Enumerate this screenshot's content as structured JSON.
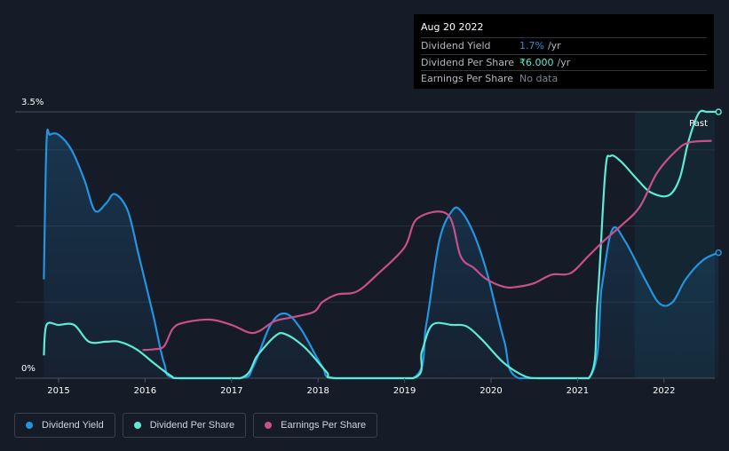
{
  "tooltip": {
    "date": "Aug 20 2022",
    "rows": [
      {
        "label": "Dividend Yield",
        "value": "1.7%",
        "unit": "/yr",
        "color": "#2394df"
      },
      {
        "label": "Dividend Per Share",
        "value": "₹6.000",
        "unit": "/yr",
        "color": "#5eead4"
      },
      {
        "label": "Earnings Per Share",
        "value": "No data",
        "unit": "",
        "color": "#7c8290"
      }
    ]
  },
  "legend": [
    {
      "label": "Dividend Yield",
      "color": "#2394df"
    },
    {
      "label": "Dividend Per Share",
      "color": "#5eead4"
    },
    {
      "label": "Earnings Per Share",
      "color": "#c8508a"
    }
  ],
  "chart_data": {
    "type": "line",
    "y_top_label": "3.5%",
    "y_bottom_label": "0%",
    "past_label": "Past",
    "ylim": [
      0,
      3.5
    ],
    "xlim": [
      2014.83,
      2022.63
    ],
    "past_start": 2021.66,
    "x_ticks": [
      "2015",
      "2016",
      "2017",
      "2018",
      "2019",
      "2020",
      "2021",
      "2022"
    ],
    "series": [
      {
        "name": "Dividend Yield",
        "color": "#2394df",
        "fill": true,
        "points": [
          [
            2014.83,
            1.3
          ],
          [
            2014.86,
            3.1
          ],
          [
            2014.9,
            3.2
          ],
          [
            2015.0,
            3.2
          ],
          [
            2015.15,
            3.0
          ],
          [
            2015.3,
            2.6
          ],
          [
            2015.42,
            2.2
          ],
          [
            2015.55,
            2.3
          ],
          [
            2015.65,
            2.42
          ],
          [
            2015.8,
            2.2
          ],
          [
            2015.93,
            1.6
          ],
          [
            2016.1,
            0.8
          ],
          [
            2016.22,
            0.2
          ],
          [
            2016.35,
            0
          ],
          [
            2017.1,
            0
          ],
          [
            2017.25,
            0.15
          ],
          [
            2017.45,
            0.7
          ],
          [
            2017.62,
            0.85
          ],
          [
            2017.8,
            0.65
          ],
          [
            2018.05,
            0.15
          ],
          [
            2018.2,
            0
          ],
          [
            2019.1,
            0
          ],
          [
            2019.25,
            0.7
          ],
          [
            2019.4,
            1.8
          ],
          [
            2019.55,
            2.2
          ],
          [
            2019.65,
            2.2
          ],
          [
            2019.8,
            1.9
          ],
          [
            2019.95,
            1.4
          ],
          [
            2020.15,
            0.5
          ],
          [
            2020.32,
            0
          ],
          [
            2021.13,
            0
          ],
          [
            2021.28,
            1.2
          ],
          [
            2021.4,
            1.95
          ],
          [
            2021.55,
            1.8
          ],
          [
            2021.78,
            1.3
          ],
          [
            2021.95,
            0.98
          ],
          [
            2022.1,
            1.0
          ],
          [
            2022.25,
            1.3
          ],
          [
            2022.45,
            1.55
          ],
          [
            2022.63,
            1.65
          ]
        ]
      },
      {
        "name": "Dividend Per Share",
        "color": "#5eead4",
        "fill": false,
        "points": [
          [
            2014.83,
            0.3
          ],
          [
            2014.86,
            0.7
          ],
          [
            2015.0,
            0.7
          ],
          [
            2015.18,
            0.7
          ],
          [
            2015.35,
            0.48
          ],
          [
            2015.55,
            0.48
          ],
          [
            2015.7,
            0.48
          ],
          [
            2015.9,
            0.38
          ],
          [
            2016.1,
            0.2
          ],
          [
            2016.3,
            0.03
          ],
          [
            2016.4,
            0
          ],
          [
            2017.1,
            0
          ],
          [
            2017.3,
            0.3
          ],
          [
            2017.5,
            0.55
          ],
          [
            2017.62,
            0.58
          ],
          [
            2017.85,
            0.4
          ],
          [
            2018.1,
            0.08
          ],
          [
            2018.2,
            0
          ],
          [
            2019.1,
            0
          ],
          [
            2019.2,
            0.35
          ],
          [
            2019.32,
            0.7
          ],
          [
            2019.55,
            0.7
          ],
          [
            2019.72,
            0.68
          ],
          [
            2019.9,
            0.5
          ],
          [
            2020.15,
            0.2
          ],
          [
            2020.4,
            0.02
          ],
          [
            2020.55,
            0
          ],
          [
            2021.13,
            0
          ],
          [
            2021.23,
            1.0
          ],
          [
            2021.32,
            2.7
          ],
          [
            2021.38,
            2.92
          ],
          [
            2021.5,
            2.85
          ],
          [
            2021.7,
            2.6
          ],
          [
            2021.85,
            2.44
          ],
          [
            2022.05,
            2.4
          ],
          [
            2022.18,
            2.62
          ],
          [
            2022.28,
            3.1
          ],
          [
            2022.4,
            3.48
          ],
          [
            2022.5,
            3.5
          ],
          [
            2022.63,
            3.5
          ]
        ]
      },
      {
        "name": "Earnings Per Share",
        "color": "#c8508a",
        "fill": false,
        "points": [
          [
            2015.97,
            0.37
          ],
          [
            2016.1,
            0.38
          ],
          [
            2016.22,
            0.42
          ],
          [
            2016.32,
            0.65
          ],
          [
            2016.45,
            0.73
          ],
          [
            2016.75,
            0.77
          ],
          [
            2017.0,
            0.7
          ],
          [
            2017.2,
            0.6
          ],
          [
            2017.32,
            0.62
          ],
          [
            2017.5,
            0.75
          ],
          [
            2017.7,
            0.8
          ],
          [
            2017.95,
            0.87
          ],
          [
            2018.05,
            1.0
          ],
          [
            2018.22,
            1.1
          ],
          [
            2018.45,
            1.14
          ],
          [
            2018.7,
            1.38
          ],
          [
            2019.0,
            1.72
          ],
          [
            2019.15,
            2.1
          ],
          [
            2019.5,
            2.15
          ],
          [
            2019.65,
            1.6
          ],
          [
            2019.8,
            1.45
          ],
          [
            2019.95,
            1.3
          ],
          [
            2020.15,
            1.2
          ],
          [
            2020.3,
            1.2
          ],
          [
            2020.5,
            1.25
          ],
          [
            2020.7,
            1.36
          ],
          [
            2020.92,
            1.38
          ],
          [
            2021.12,
            1.6
          ],
          [
            2021.3,
            1.8
          ],
          [
            2021.5,
            2.0
          ],
          [
            2021.72,
            2.25
          ],
          [
            2021.92,
            2.7
          ],
          [
            2022.15,
            3.0
          ],
          [
            2022.3,
            3.1
          ],
          [
            2022.55,
            3.12
          ]
        ]
      }
    ]
  }
}
